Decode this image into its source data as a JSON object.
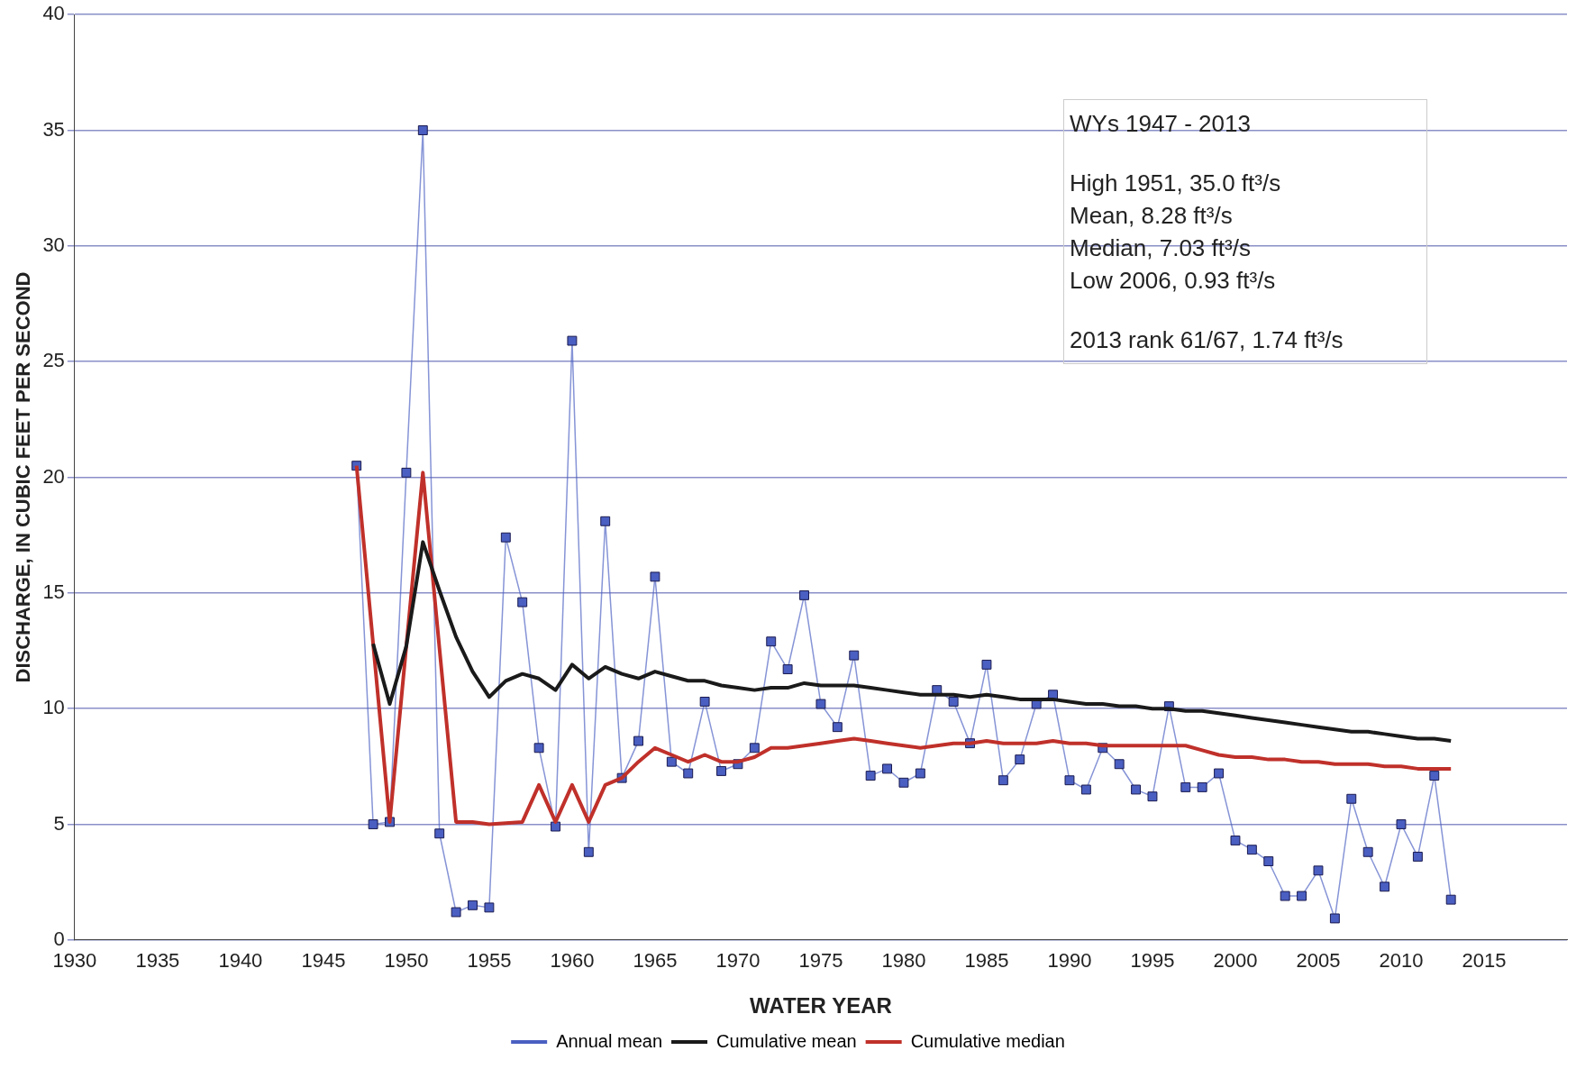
{
  "chart_data": {
    "type": "line",
    "xlabel": "WATER YEAR",
    "ylabel": "DISCHARGE, IN CUBIC FEET PER SECOND",
    "x": [
      1947,
      1948,
      1949,
      1950,
      1951,
      1952,
      1953,
      1954,
      1955,
      1956,
      1957,
      1958,
      1959,
      1960,
      1961,
      1962,
      1963,
      1964,
      1965,
      1966,
      1967,
      1968,
      1969,
      1970,
      1971,
      1972,
      1973,
      1974,
      1975,
      1976,
      1977,
      1978,
      1979,
      1980,
      1981,
      1982,
      1983,
      1984,
      1985,
      1986,
      1987,
      1988,
      1989,
      1990,
      1991,
      1992,
      1993,
      1994,
      1995,
      1996,
      1997,
      1998,
      1999,
      2000,
      2001,
      2002,
      2003,
      2004,
      2005,
      2006,
      2007,
      2008,
      2009,
      2010,
      2011,
      2012,
      2013
    ],
    "series": [
      {
        "name": "Annual mean",
        "color": "#4a5fc1",
        "marker": "square",
        "values": [
          20.5,
          5.0,
          5.1,
          20.2,
          35.0,
          4.6,
          1.2,
          1.5,
          1.4,
          17.4,
          14.6,
          8.3,
          4.9,
          25.9,
          3.8,
          18.1,
          7.0,
          8.6,
          15.7,
          7.7,
          7.2,
          10.3,
          7.3,
          7.6,
          8.3,
          12.9,
          11.7,
          14.9,
          10.2,
          9.2,
          12.3,
          7.1,
          7.4,
          6.8,
          7.2,
          10.8,
          10.3,
          8.5,
          11.9,
          6.9,
          7.8,
          10.2,
          10.6,
          6.9,
          6.5,
          8.3,
          7.6,
          6.5,
          6.2,
          10.1,
          6.6,
          6.6,
          7.2,
          4.3,
          3.9,
          3.4,
          1.9,
          1.9,
          3.0,
          0.93,
          6.1,
          3.8,
          2.3,
          5.0,
          3.6,
          7.1,
          1.74
        ]
      },
      {
        "name": "Cumulative mean",
        "color": "#1a1a1a",
        "marker": "none",
        "values": [
          null,
          12.8,
          10.2,
          12.7,
          17.2,
          15.1,
          13.1,
          11.6,
          10.5,
          11.2,
          11.5,
          11.3,
          10.8,
          11.9,
          11.3,
          11.8,
          11.5,
          11.3,
          11.6,
          11.4,
          11.2,
          11.2,
          11.0,
          10.9,
          10.8,
          10.9,
          10.9,
          11.1,
          11.0,
          11.0,
          11.0,
          10.9,
          10.8,
          10.7,
          10.6,
          10.6,
          10.6,
          10.5,
          10.6,
          10.5,
          10.4,
          10.4,
          10.4,
          10.3,
          10.2,
          10.2,
          10.1,
          10.1,
          10.0,
          10.0,
          9.9,
          9.9,
          9.8,
          9.7,
          9.6,
          9.5,
          9.4,
          9.3,
          9.2,
          9.1,
          9.0,
          9.0,
          8.9,
          8.8,
          8.7,
          8.7,
          8.6
        ]
      },
      {
        "name": "Cumulative median",
        "color": "#c0302a",
        "marker": "none",
        "values": [
          20.5,
          12.8,
          5.1,
          12.7,
          20.2,
          12.6,
          5.1,
          5.1,
          5.0,
          5.05,
          5.1,
          6.7,
          5.1,
          6.7,
          5.1,
          6.7,
          7.0,
          7.7,
          8.3,
          8.0,
          7.7,
          8.0,
          7.7,
          7.7,
          7.9,
          8.3,
          8.3,
          8.4,
          8.5,
          8.6,
          8.7,
          8.6,
          8.5,
          8.4,
          8.3,
          8.4,
          8.5,
          8.5,
          8.6,
          8.5,
          8.5,
          8.5,
          8.6,
          8.5,
          8.5,
          8.4,
          8.4,
          8.4,
          8.4,
          8.4,
          8.4,
          8.2,
          8.0,
          7.9,
          7.9,
          7.8,
          7.8,
          7.7,
          7.7,
          7.6,
          7.6,
          7.6,
          7.5,
          7.5,
          7.4,
          7.4,
          7.4
        ]
      }
    ],
    "xlim": [
      1930,
      2020
    ],
    "xticks": [
      1930,
      1935,
      1940,
      1945,
      1950,
      1955,
      1960,
      1965,
      1970,
      1975,
      1980,
      1985,
      1990,
      1995,
      2000,
      2005,
      2010,
      2015
    ],
    "ylim": [
      0,
      40
    ],
    "yticks": [
      0,
      5,
      10,
      15,
      20,
      25,
      30,
      35,
      40
    ],
    "grid": "y",
    "legend": "bottom",
    "annotations": [
      "WYs 1947 - 2013",
      "High 1951, 35.0 ft³/s",
      "Mean, 8.28 ft³/s",
      "Median, 7.03 ft³/s",
      "Low 2006, 0.93 ft³/s",
      "2013  rank 61/67, 1.74 ft³/s"
    ]
  }
}
